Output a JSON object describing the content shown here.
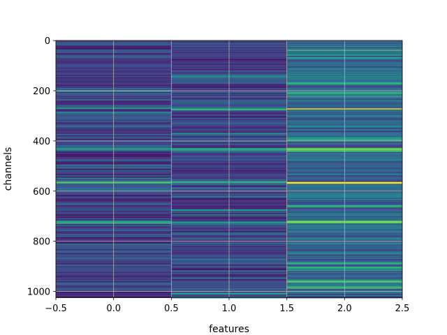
{
  "chart_data": {
    "type": "heatmap",
    "xlabel": "features",
    "ylabel": "channels",
    "xlim": [
      -0.5,
      2.5
    ],
    "ylim": [
      1023.5,
      -0.5
    ],
    "xticks": [
      -0.5,
      0.0,
      0.5,
      1.0,
      1.5,
      2.0,
      2.5
    ],
    "xtick_labels": [
      "−0.5",
      "0.0",
      "0.5",
      "1.0",
      "1.5",
      "2.0",
      "2.5"
    ],
    "yticks": [
      0,
      200,
      400,
      600,
      800,
      1000
    ],
    "ytick_labels": [
      "0",
      "200",
      "400",
      "600",
      "800",
      "1000"
    ],
    "columns": 3,
    "rows": 1024,
    "colormap": "viridis",
    "grid": true,
    "column_means": [
      0.2,
      0.2,
      0.32
    ],
    "bright_rows_feature2": [
      40,
      60,
      170,
      210,
      272,
      395,
      430,
      440,
      565,
      660,
      720,
      890,
      960,
      985
    ],
    "bright_rows_all": [
      272,
      435,
      565,
      725
    ]
  }
}
